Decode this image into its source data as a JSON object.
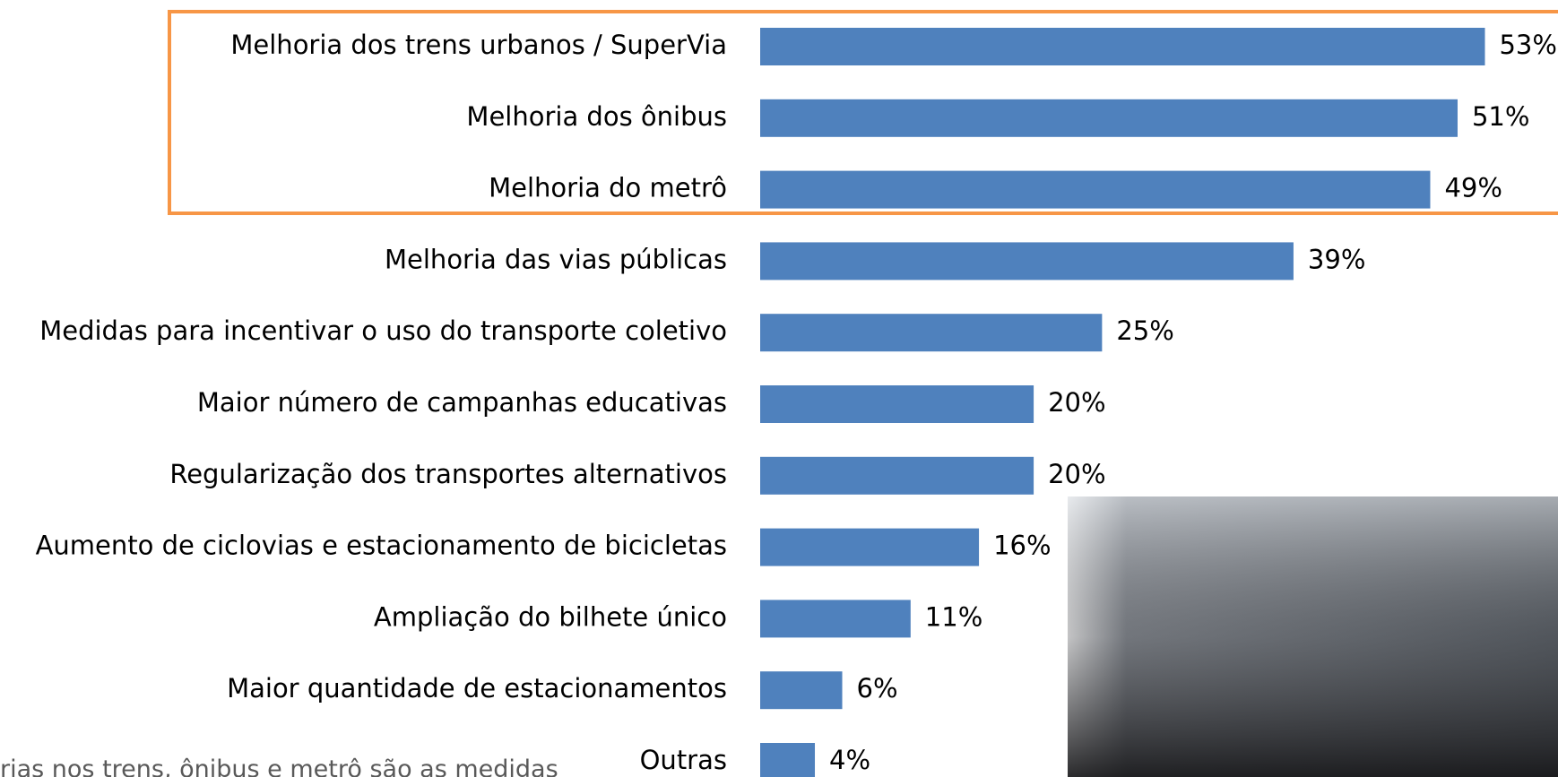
{
  "chart_data": {
    "type": "barh",
    "categories": [
      "Melhoria dos trens urbanos / SuperVia",
      "Melhoria dos ônibus",
      "Melhoria do metrô",
      "Melhoria das vias públicas",
      "Medidas para incentivar o uso do transporte coletivo",
      "Maior número de campanhas educativas",
      "Regularização dos transportes alternativos",
      "Aumento de ciclovias e estacionamento de bicicletas",
      "Ampliação do bilhete único",
      "Maior quantidade de estacionamentos",
      "Outras"
    ],
    "values": [
      53,
      51,
      49,
      39,
      25,
      20,
      20,
      16,
      11,
      6,
      4
    ],
    "value_labels": [
      "53%",
      "51%",
      "49%",
      "39%",
      "25%",
      "20%",
      "20%",
      "16%",
      "11%",
      "6%",
      "4%"
    ],
    "color": "#4f81bd",
    "highlight_color": "#f79646",
    "xlim": [
      0,
      55
    ],
    "annotation": "rias nos trens, ônibus e metrô são as medidas"
  }
}
